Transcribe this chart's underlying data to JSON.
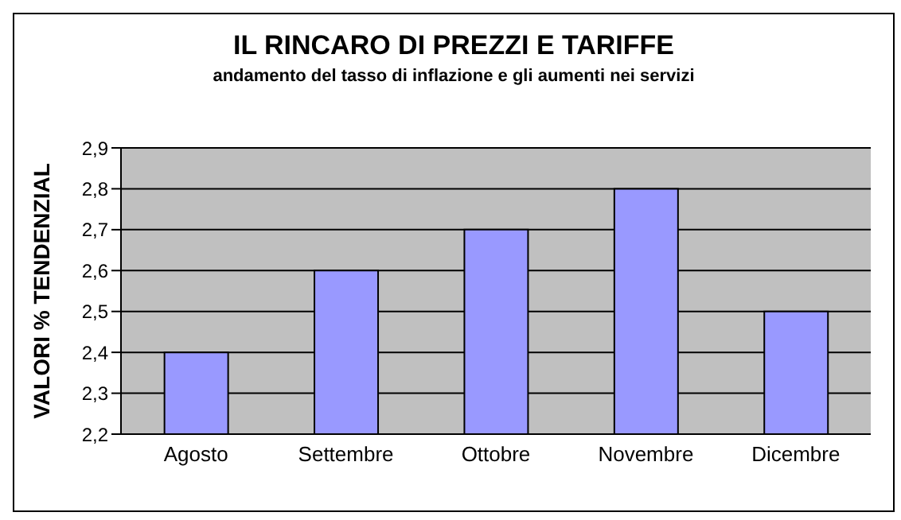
{
  "chart_data": {
    "type": "bar",
    "title": "IL RINCARO DI PREZZI E TARIFFE",
    "subtitle": "andamento del tasso di inflazione e gli aumenti nei servizi",
    "ylabel": "VALORI % TENDENZIAL",
    "categories": [
      "Agosto",
      "Settembre",
      "Ottobre",
      "Novembre",
      "Dicembre"
    ],
    "values": [
      2.4,
      2.6,
      2.7,
      2.8,
      2.5
    ],
    "color": "#9999ff",
    "ylim": [
      2.2,
      2.9
    ],
    "yticks": [
      {
        "value": 2.2,
        "label": "2,2"
      },
      {
        "value": 2.3,
        "label": "2,3"
      },
      {
        "value": 2.4,
        "label": "2,4"
      },
      {
        "value": 2.5,
        "label": "2,5"
      },
      {
        "value": 2.6,
        "label": "2,6"
      },
      {
        "value": 2.7,
        "label": "2,7"
      },
      {
        "value": 2.8,
        "label": "2,8"
      },
      {
        "value": 2.9,
        "label": "2,9"
      }
    ],
    "grid": "y"
  }
}
